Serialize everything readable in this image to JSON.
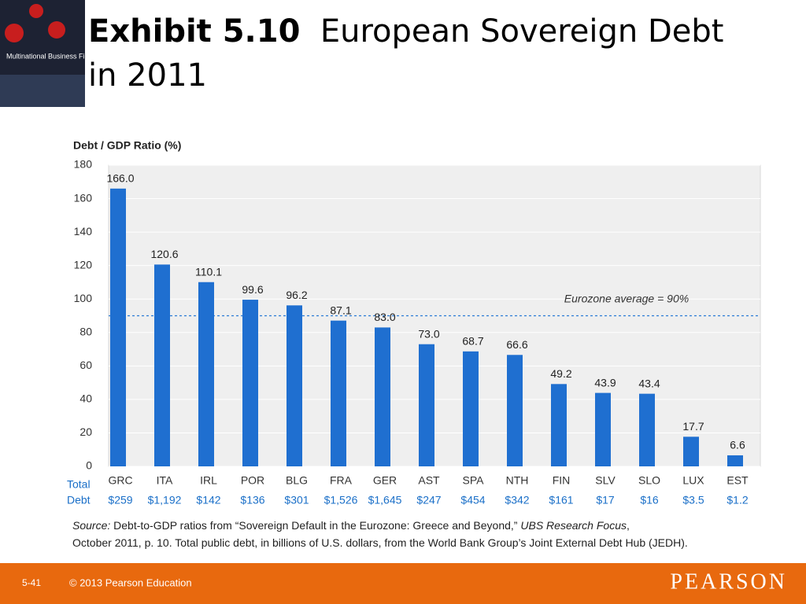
{
  "slide": {
    "exhibit": "Exhibit 5.10",
    "title": "European Sovereign Debt in 2011",
    "cover_title": "Multinational Business Finance",
    "page": "5-41",
    "copyright": "© 2013 Pearson Education",
    "brand": "PEARSON"
  },
  "chart_data": {
    "type": "bar",
    "y_label": "Debt / GDP Ratio (%)",
    "categories": [
      "GRC",
      "ITA",
      "IRL",
      "POR",
      "BLG",
      "FRA",
      "GER",
      "AST",
      "SPA",
      "NTH",
      "FIN",
      "SLV",
      "SLO",
      "LUX",
      "EST"
    ],
    "values": [
      166.0,
      120.6,
      110.1,
      99.6,
      96.2,
      87.1,
      83.0,
      73.0,
      68.7,
      66.6,
      49.2,
      43.9,
      43.4,
      17.7,
      6.6
    ],
    "value_labels": [
      "166.0",
      "120.6",
      "110.1",
      "99.6",
      "96.2",
      "87.1",
      "83.0",
      "73.0",
      "68.7",
      "66.6",
      "49.2",
      "43.9",
      "43.4",
      "17.7",
      "6.6"
    ],
    "color": "#1f6fd0",
    "ylim": [
      0,
      180
    ],
    "yticks": [
      0,
      20,
      40,
      60,
      80,
      100,
      120,
      140,
      160,
      180
    ],
    "grid": true,
    "reference_line": {
      "value": 90,
      "label": "Eurozone average = 90%"
    },
    "total_debt_label": [
      "Total",
      "Debt"
    ],
    "total_debt": [
      "$259",
      "$1,192",
      "$142",
      "$136",
      "$301",
      "$1,526",
      "$1,645",
      "$247",
      "$454",
      "$342",
      "$161",
      "$17",
      "$16",
      "$3.5",
      "$1.2"
    ]
  },
  "source": {
    "lead": "Source:",
    "text1": " Debt-to-GDP ratios from “Sovereign Default in the Eurozone: Greece and Beyond,” ",
    "journal": "UBS Research Focus",
    "text2": ",",
    "text3": "October 2011, p. 10. Total public debt, in billions of U.S. dollars, from the World Bank Group’s Joint External Debt Hub (JEDH)."
  }
}
